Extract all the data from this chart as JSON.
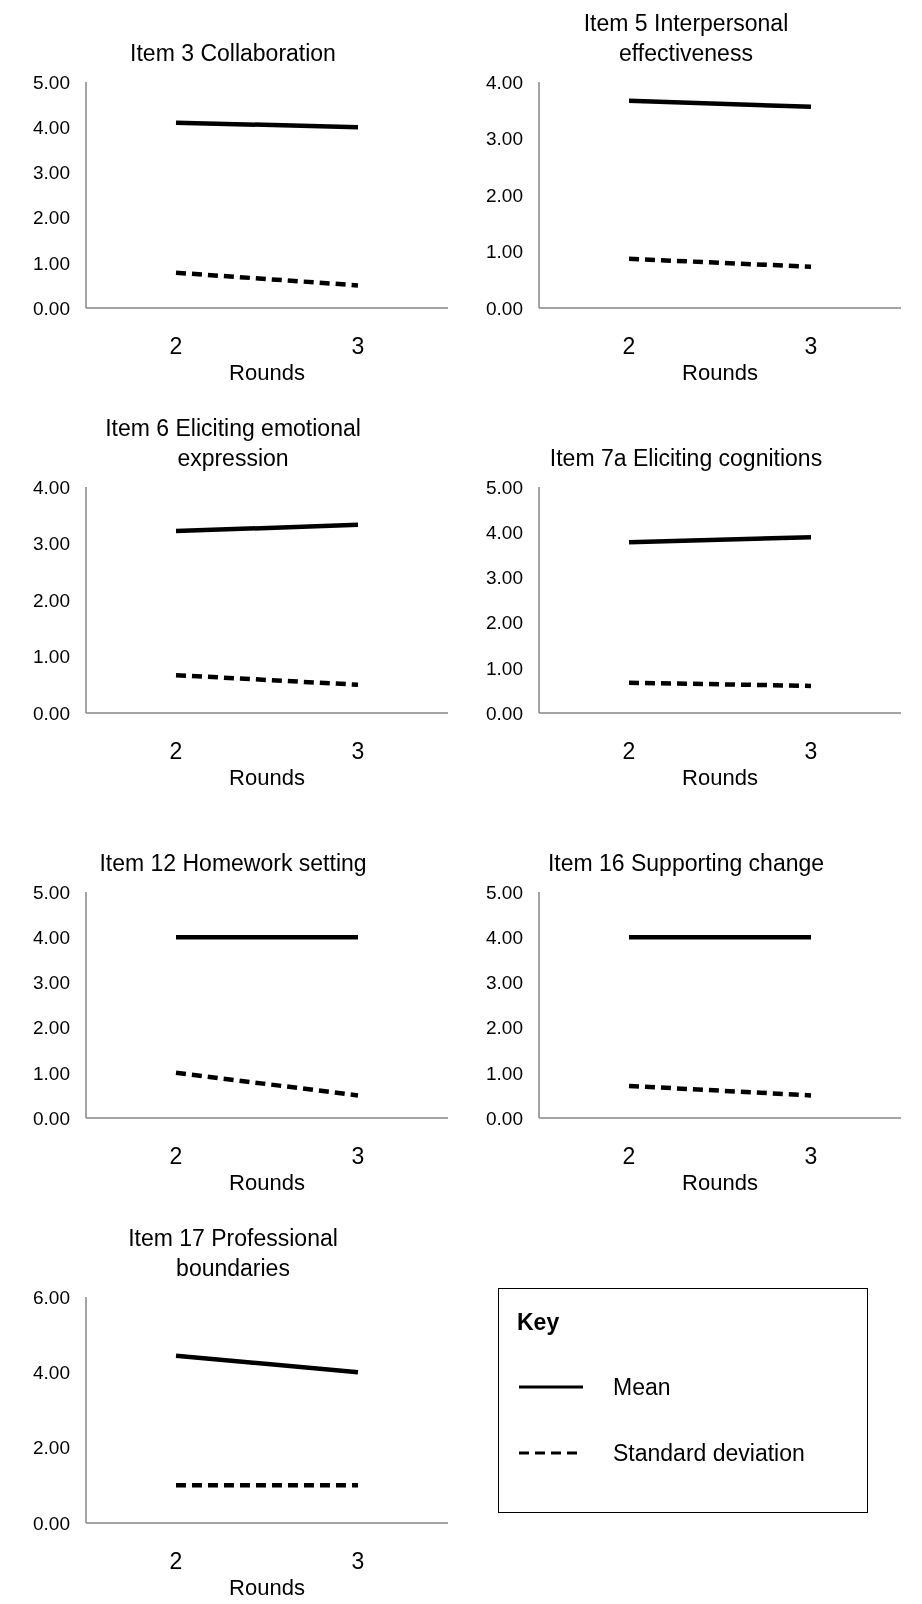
{
  "chart_data": [
    {
      "type": "line",
      "title": "Item 3 Collaboration",
      "xlabel": "Rounds",
      "categories": [
        "2",
        "3"
      ],
      "series": [
        {
          "color": "#000000",
          "values": [
            4.1,
            4.0
          ],
          "line_style": "solid"
        },
        {
          "color": "#000000",
          "values": [
            0.78,
            0.5
          ],
          "line_style": "dashed"
        }
      ],
      "ylim": [
        0,
        5
      ],
      "yticks": [
        {
          "value": 0,
          "label": "0.00"
        },
        {
          "value": 1,
          "label": "1.00"
        },
        {
          "value": 2,
          "label": "2.00"
        },
        {
          "value": 3,
          "label": "3.00"
        },
        {
          "value": 4,
          "label": "4.00"
        },
        {
          "value": 5,
          "label": "5.00"
        }
      ],
      "grid": false,
      "legend": false,
      "marker": "none"
    },
    {
      "type": "line",
      "title": "Item 5 Interpersonal effectiveness",
      "xlabel": "Rounds",
      "categories": [
        "2",
        "3"
      ],
      "series": [
        {
          "color": "#000000",
          "values": [
            3.67,
            3.56
          ],
          "line_style": "solid"
        },
        {
          "color": "#000000",
          "values": [
            0.87,
            0.73
          ],
          "line_style": "dashed"
        }
      ],
      "ylim": [
        0,
        4
      ],
      "yticks": [
        {
          "value": 0,
          "label": "0.00"
        },
        {
          "value": 1,
          "label": "1.00"
        },
        {
          "value": 2,
          "label": "2.00"
        },
        {
          "value": 3,
          "label": "3.00"
        },
        {
          "value": 4,
          "label": "4.00"
        }
      ],
      "grid": false,
      "legend": false,
      "marker": "none"
    },
    {
      "type": "line",
      "title": "Item 6 Eliciting emotional expression",
      "xlabel": "Rounds",
      "categories": [
        "2",
        "3"
      ],
      "series": [
        {
          "color": "#000000",
          "values": [
            3.22,
            3.33
          ],
          "line_style": "solid"
        },
        {
          "color": "#000000",
          "values": [
            0.67,
            0.5
          ],
          "line_style": "dashed"
        }
      ],
      "ylim": [
        0,
        4
      ],
      "yticks": [
        {
          "value": 0,
          "label": "0.00"
        },
        {
          "value": 1,
          "label": "1.00"
        },
        {
          "value": 2,
          "label": "2.00"
        },
        {
          "value": 3,
          "label": "3.00"
        },
        {
          "value": 4,
          "label": "4.00"
        }
      ],
      "grid": false,
      "legend": false,
      "marker": "none"
    },
    {
      "type": "line",
      "title": "Item 7a Eliciting cognitions",
      "xlabel": "Rounds",
      "categories": [
        "2",
        "3"
      ],
      "series": [
        {
          "color": "#000000",
          "values": [
            3.78,
            3.89
          ],
          "line_style": "solid"
        },
        {
          "color": "#000000",
          "values": [
            0.67,
            0.6
          ],
          "line_style": "dashed"
        }
      ],
      "ylim": [
        0,
        5
      ],
      "yticks": [
        {
          "value": 0,
          "label": "0.00"
        },
        {
          "value": 1,
          "label": "1.00"
        },
        {
          "value": 2,
          "label": "2.00"
        },
        {
          "value": 3,
          "label": "3.00"
        },
        {
          "value": 4,
          "label": "4.00"
        },
        {
          "value": 5,
          "label": "5.00"
        }
      ],
      "grid": false,
      "legend": false,
      "marker": "none"
    },
    {
      "type": "line",
      "title": "Item 12 Homework setting",
      "xlabel": "Rounds",
      "categories": [
        "2",
        "3"
      ],
      "series": [
        {
          "color": "#000000",
          "values": [
            4.0,
            4.0
          ],
          "line_style": "solid"
        },
        {
          "color": "#000000",
          "values": [
            1.0,
            0.5
          ],
          "line_style": "dashed"
        }
      ],
      "ylim": [
        0,
        5
      ],
      "yticks": [
        {
          "value": 0,
          "label": "0.00"
        },
        {
          "value": 1,
          "label": "1.00"
        },
        {
          "value": 2,
          "label": "2.00"
        },
        {
          "value": 3,
          "label": "3.00"
        },
        {
          "value": 4,
          "label": "4.00"
        },
        {
          "value": 5,
          "label": "5.00"
        }
      ],
      "grid": false,
      "legend": false,
      "marker": "none"
    },
    {
      "type": "line",
      "title": "Item 16 Supporting change",
      "xlabel": "Rounds",
      "categories": [
        "2",
        "3"
      ],
      "series": [
        {
          "color": "#000000",
          "values": [
            4.0,
            4.0
          ],
          "line_style": "solid"
        },
        {
          "color": "#000000",
          "values": [
            0.71,
            0.5
          ],
          "line_style": "dashed"
        }
      ],
      "ylim": [
        0,
        5
      ],
      "yticks": [
        {
          "value": 0,
          "label": "0.00"
        },
        {
          "value": 1,
          "label": "1.00"
        },
        {
          "value": 2,
          "label": "2.00"
        },
        {
          "value": 3,
          "label": "3.00"
        },
        {
          "value": 4,
          "label": "4.00"
        },
        {
          "value": 5,
          "label": "5.00"
        }
      ],
      "grid": false,
      "legend": false,
      "marker": "none"
    },
    {
      "type": "line",
      "title": "Item 17 Professional boundaries",
      "xlabel": "Rounds",
      "categories": [
        "2",
        "3"
      ],
      "legend_title": "Key",
      "series": [
        {
          "name": "Mean",
          "color": "#000000",
          "values": [
            4.44,
            4.0
          ],
          "line_style": "solid"
        },
        {
          "name": "Standard deviation",
          "color": "#000000",
          "values": [
            1.0,
            1.0
          ],
          "line_style": "dashed"
        }
      ],
      "ylim": [
        0,
        6
      ],
      "yticks": [
        {
          "value": 0,
          "label": "0.00"
        },
        {
          "value": 2,
          "label": "2.00"
        },
        {
          "value": 4,
          "label": "4.00"
        },
        {
          "value": 6,
          "label": "6.00"
        }
      ],
      "grid": false,
      "legend": "right",
      "marker": "none"
    }
  ]
}
